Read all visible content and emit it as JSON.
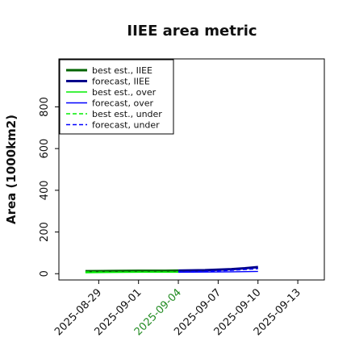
{
  "chart_data": {
    "type": "line",
    "title": "IIEE area metric",
    "xlabel": "",
    "ylabel": "Area (1000km2)",
    "xlim": [
      "2025-08-26",
      "2025-09-15"
    ],
    "ylim": [
      -30,
      1030
    ],
    "yticks": [
      0,
      200,
      400,
      600,
      800
    ],
    "xticks": [
      "2025-08-29",
      "2025-09-01",
      "2025-09-04",
      "2025-09-07",
      "2025-09-10",
      "2025-09-13"
    ],
    "highlight_tick": "2025-09-04",
    "highlight_color": "#228b22",
    "grid": false,
    "legend": "top-left",
    "series": [
      {
        "name": "best est., IIEE",
        "color": "#006400",
        "dash": "solid",
        "width": 3,
        "points": [
          [
            "2025-08-28",
            12
          ],
          [
            "2025-08-30",
            13
          ],
          [
            "2025-09-01",
            14
          ],
          [
            "2025-09-03",
            14
          ],
          [
            "2025-09-04",
            15
          ]
        ]
      },
      {
        "name": "forecast, IIEE",
        "color": "#00008b",
        "dash": "solid",
        "width": 3,
        "points": [
          [
            "2025-09-04",
            15
          ],
          [
            "2025-09-06",
            17
          ],
          [
            "2025-09-08",
            22
          ],
          [
            "2025-09-09",
            26
          ],
          [
            "2025-09-10",
            32
          ]
        ]
      },
      {
        "name": "best est., over",
        "color": "#00ee00",
        "dash": "solid",
        "width": 1.4,
        "points": [
          [
            "2025-08-28",
            5
          ],
          [
            "2025-08-30",
            6
          ],
          [
            "2025-09-01",
            7
          ],
          [
            "2025-09-03",
            7
          ],
          [
            "2025-09-04",
            7
          ]
        ]
      },
      {
        "name": "forecast, over",
        "color": "#0000ff",
        "dash": "solid",
        "width": 1.4,
        "points": [
          [
            "2025-09-04",
            7
          ],
          [
            "2025-09-06",
            8
          ],
          [
            "2025-09-08",
            9
          ],
          [
            "2025-09-10",
            11
          ]
        ]
      },
      {
        "name": "best est., under",
        "color": "#00ee00",
        "dash": "dashed",
        "width": 1.4,
        "points": [
          [
            "2025-08-28",
            9
          ],
          [
            "2025-08-30",
            8
          ],
          [
            "2025-09-01",
            9
          ],
          [
            "2025-09-03",
            9
          ],
          [
            "2025-09-04",
            9
          ]
        ]
      },
      {
        "name": "forecast, under",
        "color": "#0000ff",
        "dash": "dashed",
        "width": 1.4,
        "points": [
          [
            "2025-09-04",
            9
          ],
          [
            "2025-09-06",
            11
          ],
          [
            "2025-09-08",
            16
          ],
          [
            "2025-09-10",
            24
          ]
        ]
      }
    ]
  }
}
